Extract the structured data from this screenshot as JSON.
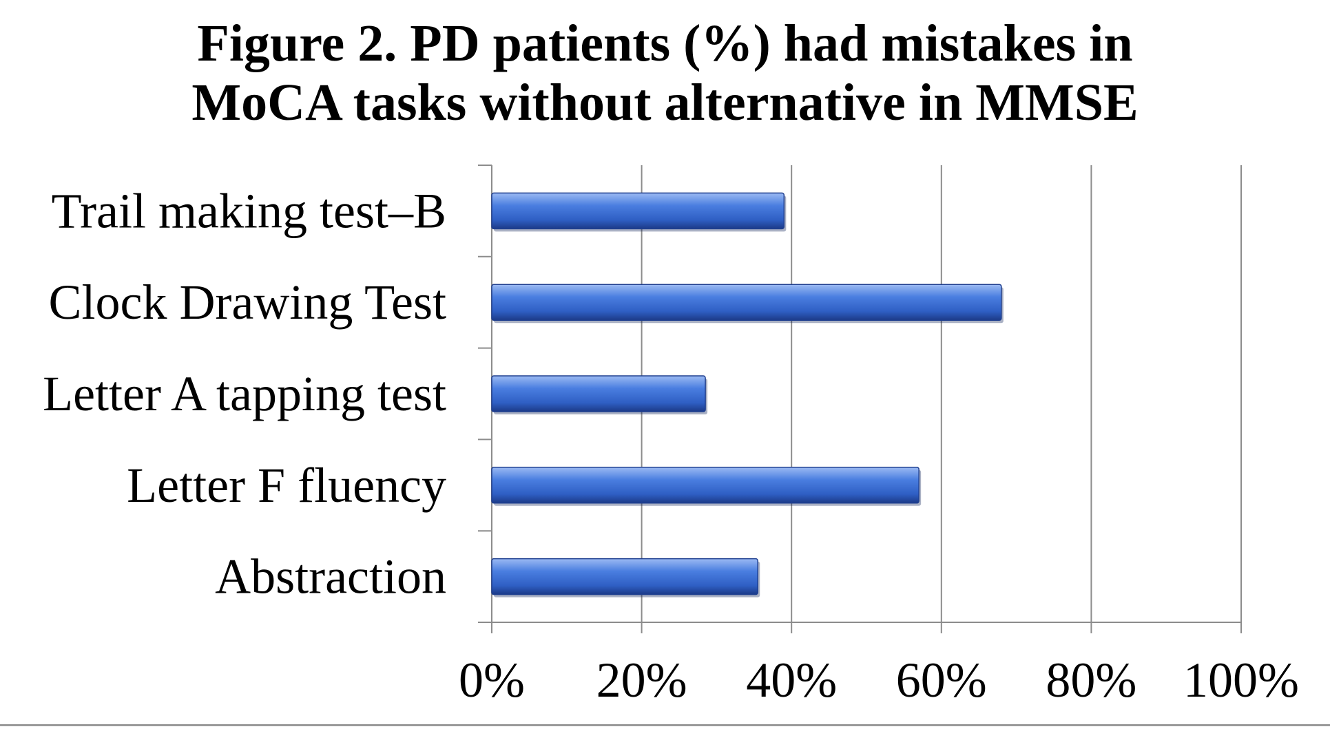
{
  "chart_data": {
    "type": "bar",
    "orientation": "horizontal",
    "title_lines": [
      "Figure 2. PD patients (%) had mistakes in",
      "MoCA tasks without alternative in MMSE"
    ],
    "categories": [
      "Trail making test–B",
      "Clock Drawing Test",
      "Letter A tapping test",
      "Letter F fluency",
      "Abstraction"
    ],
    "values": [
      39,
      68,
      28.5,
      57,
      35.5
    ],
    "xlim": [
      0,
      100
    ],
    "x_ticks": [
      0,
      20,
      40,
      60,
      80,
      100
    ],
    "x_tick_labels": [
      "0%",
      "20%",
      "40%",
      "60%",
      "80%",
      "100%"
    ],
    "xlabel": "",
    "ylabel": "",
    "grid": true,
    "legend": "none",
    "colors": {
      "bar_fill": "#3d6fd6",
      "bar_dark": "#1f3f8f",
      "bar_light": "#8fb0f0",
      "gridline": "#8c8c8c",
      "axis": "#8c8c8c"
    }
  }
}
